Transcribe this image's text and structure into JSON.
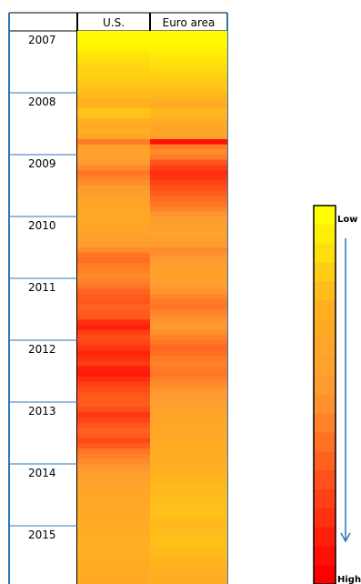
{
  "chart_data": {
    "type": "heatmap",
    "columns": [
      "U.S.",
      "Euro area"
    ],
    "years": [
      "2007",
      "2008",
      "2009",
      "2010",
      "2011",
      "2012",
      "2013",
      "2014",
      "2015"
    ],
    "months_per_year": 12,
    "scale": {
      "min": 0,
      "max": 1,
      "low_label": "Low",
      "high_label": "High"
    },
    "series": [
      {
        "name": "U.S.",
        "values": [
          0.02,
          0.02,
          0.03,
          0.04,
          0.08,
          0.1,
          0.12,
          0.15,
          0.14,
          0.16,
          0.18,
          0.2,
          0.22,
          0.25,
          0.24,
          0.18,
          0.2,
          0.26,
          0.3,
          0.28,
          0.38,
          0.6,
          0.45,
          0.4,
          0.42,
          0.48,
          0.55,
          0.62,
          0.58,
          0.54,
          0.5,
          0.45,
          0.42,
          0.4,
          0.38,
          0.36,
          0.36,
          0.35,
          0.4,
          0.42,
          0.45,
          0.48,
          0.55,
          0.62,
          0.65,
          0.6,
          0.58,
          0.55,
          0.58,
          0.62,
          0.68,
          0.7,
          0.72,
          0.68,
          0.7,
          0.72,
          0.85,
          0.9,
          0.8,
          0.75,
          0.78,
          0.82,
          0.88,
          0.85,
          0.8,
          0.9,
          0.92,
          0.85,
          0.8,
          0.75,
          0.72,
          0.7,
          0.7,
          0.75,
          0.82,
          0.78,
          0.72,
          0.68,
          0.7,
          0.76,
          0.7,
          0.62,
          0.58,
          0.55,
          0.52,
          0.48,
          0.45,
          0.42,
          0.4,
          0.38,
          0.36,
          0.35,
          0.34,
          0.33,
          0.32,
          0.31,
          0.32,
          0.3,
          0.28,
          0.26,
          0.25,
          0.26,
          0.28,
          0.3,
          0.31,
          0.32,
          0.33,
          0.34
        ]
      },
      {
        "name": "Euro area",
        "values": [
          0.02,
          0.02,
          0.03,
          0.04,
          0.06,
          0.08,
          0.1,
          0.12,
          0.14,
          0.16,
          0.18,
          0.2,
          0.22,
          0.26,
          0.3,
          0.22,
          0.24,
          0.3,
          0.34,
          0.36,
          0.4,
          0.95,
          0.6,
          0.55,
          0.6,
          0.72,
          0.8,
          0.85,
          0.82,
          0.78,
          0.74,
          0.7,
          0.65,
          0.62,
          0.58,
          0.52,
          0.48,
          0.45,
          0.42,
          0.4,
          0.45,
          0.5,
          0.55,
          0.52,
          0.48,
          0.45,
          0.44,
          0.42,
          0.44,
          0.48,
          0.52,
          0.56,
          0.6,
          0.62,
          0.58,
          0.55,
          0.52,
          0.5,
          0.54,
          0.58,
          0.62,
          0.66,
          0.64,
          0.6,
          0.58,
          0.6,
          0.62,
          0.58,
          0.55,
          0.52,
          0.5,
          0.48,
          0.45,
          0.42,
          0.4,
          0.38,
          0.36,
          0.35,
          0.34,
          0.32,
          0.3,
          0.29,
          0.28,
          0.27,
          0.26,
          0.25,
          0.24,
          0.23,
          0.22,
          0.22,
          0.21,
          0.21,
          0.2,
          0.2,
          0.21,
          0.22,
          0.22,
          0.21,
          0.2,
          0.2,
          0.21,
          0.22,
          0.23,
          0.24,
          0.25,
          0.26,
          0.27,
          0.28
        ]
      }
    ],
    "colors": {
      "low": "#ffff00",
      "mid": "#ff9a30",
      "high": "#ff0000",
      "border": "#2e75b6",
      "legend_arrow": "#2e75b6"
    }
  }
}
